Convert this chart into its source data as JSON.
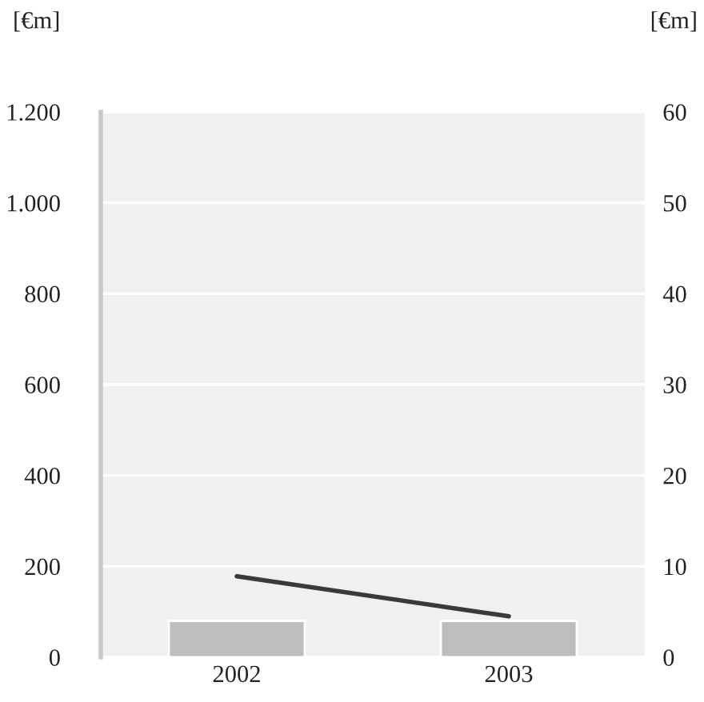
{
  "chart_data": {
    "type": "bar",
    "categories": [
      "2002",
      "2003"
    ],
    "series": [
      {
        "color": "#bdbdbf",
        "values": [
          80,
          80
        ]
      },
      {
        "type": "line",
        "axis": "y2",
        "color": "#3a3a3a",
        "values": [
          8.9,
          4.5
        ]
      }
    ],
    "ylabel": "[€m]",
    "y2label": "[€m]",
    "ylim": [
      0,
      1200
    ],
    "yticks": [
      0,
      200,
      400,
      600,
      800,
      {
        "value": 1000,
        "label": "1.000"
      },
      {
        "value": 1200,
        "label": "1.200"
      }
    ],
    "y2lim": [
      0,
      60
    ],
    "y2ticks": [
      0,
      10,
      20,
      30,
      40,
      50,
      60
    ],
    "grid": "y",
    "legend": false
  }
}
